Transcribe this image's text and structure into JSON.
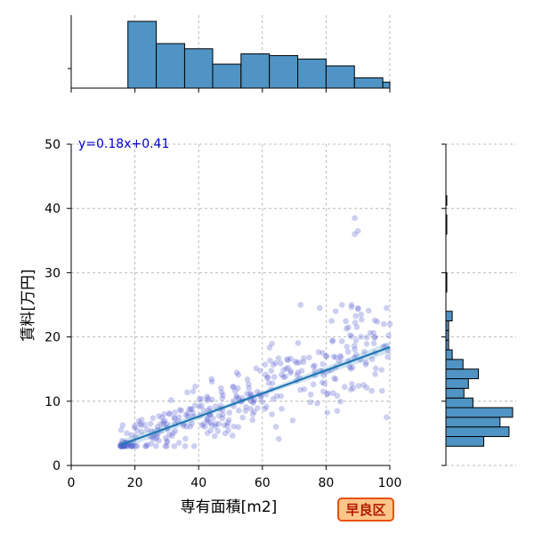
{
  "chart_data": {
    "type": "scatter",
    "title": "",
    "xlabel": "専有面積[m2]",
    "ylabel": "賃料[万円]",
    "xlim": [
      0,
      100
    ],
    "ylim": [
      0,
      50
    ],
    "x_ticks": [
      0,
      20,
      40,
      60,
      80,
      100
    ],
    "y_ticks": [
      0,
      10,
      20,
      30,
      40,
      50
    ],
    "grid": true,
    "regression": {
      "label": "y=0.18x+0.41",
      "slope": 0.18,
      "intercept": 0.41,
      "x_range": [
        15.5,
        100
      ]
    },
    "badge": "早良区",
    "colors": {
      "points": "#5a5fcf",
      "regression_line": "#1f77b4",
      "hist_fill": "#4f94c4",
      "equation": "#0000cc",
      "badge_fill": "#ffc58a",
      "badge_border": "#e8520a",
      "badge_text": "#b01a00"
    },
    "marginal_x": {
      "bin_edges": [
        0,
        8.9,
        17.8,
        26.7,
        35.6,
        44.4,
        53.3,
        62.2,
        71.1,
        80,
        88.9,
        97.8,
        106.7
      ],
      "counts": [
        0,
        0,
        78,
        52,
        46,
        28,
        40,
        38,
        34,
        26,
        12,
        7
      ]
    },
    "marginal_y": {
      "bin_edges": [
        3.0,
        4.5,
        6.0,
        7.5,
        9.0,
        10.5,
        12.0,
        13.5,
        15.0,
        16.5,
        18.0,
        19.5,
        21.0,
        22.5,
        24.0,
        25.5,
        27.0,
        28.5,
        30.0,
        31.5,
        33.0,
        34.5,
        36.0,
        37.5,
        39.0,
        40.5,
        42.0
      ],
      "counts": [
        42,
        70,
        60,
        74,
        30,
        20,
        25,
        36,
        19,
        7,
        3,
        3,
        3,
        7,
        0,
        0,
        1,
        1,
        0,
        0,
        0,
        0,
        1,
        1,
        0,
        1
      ]
    }
  }
}
